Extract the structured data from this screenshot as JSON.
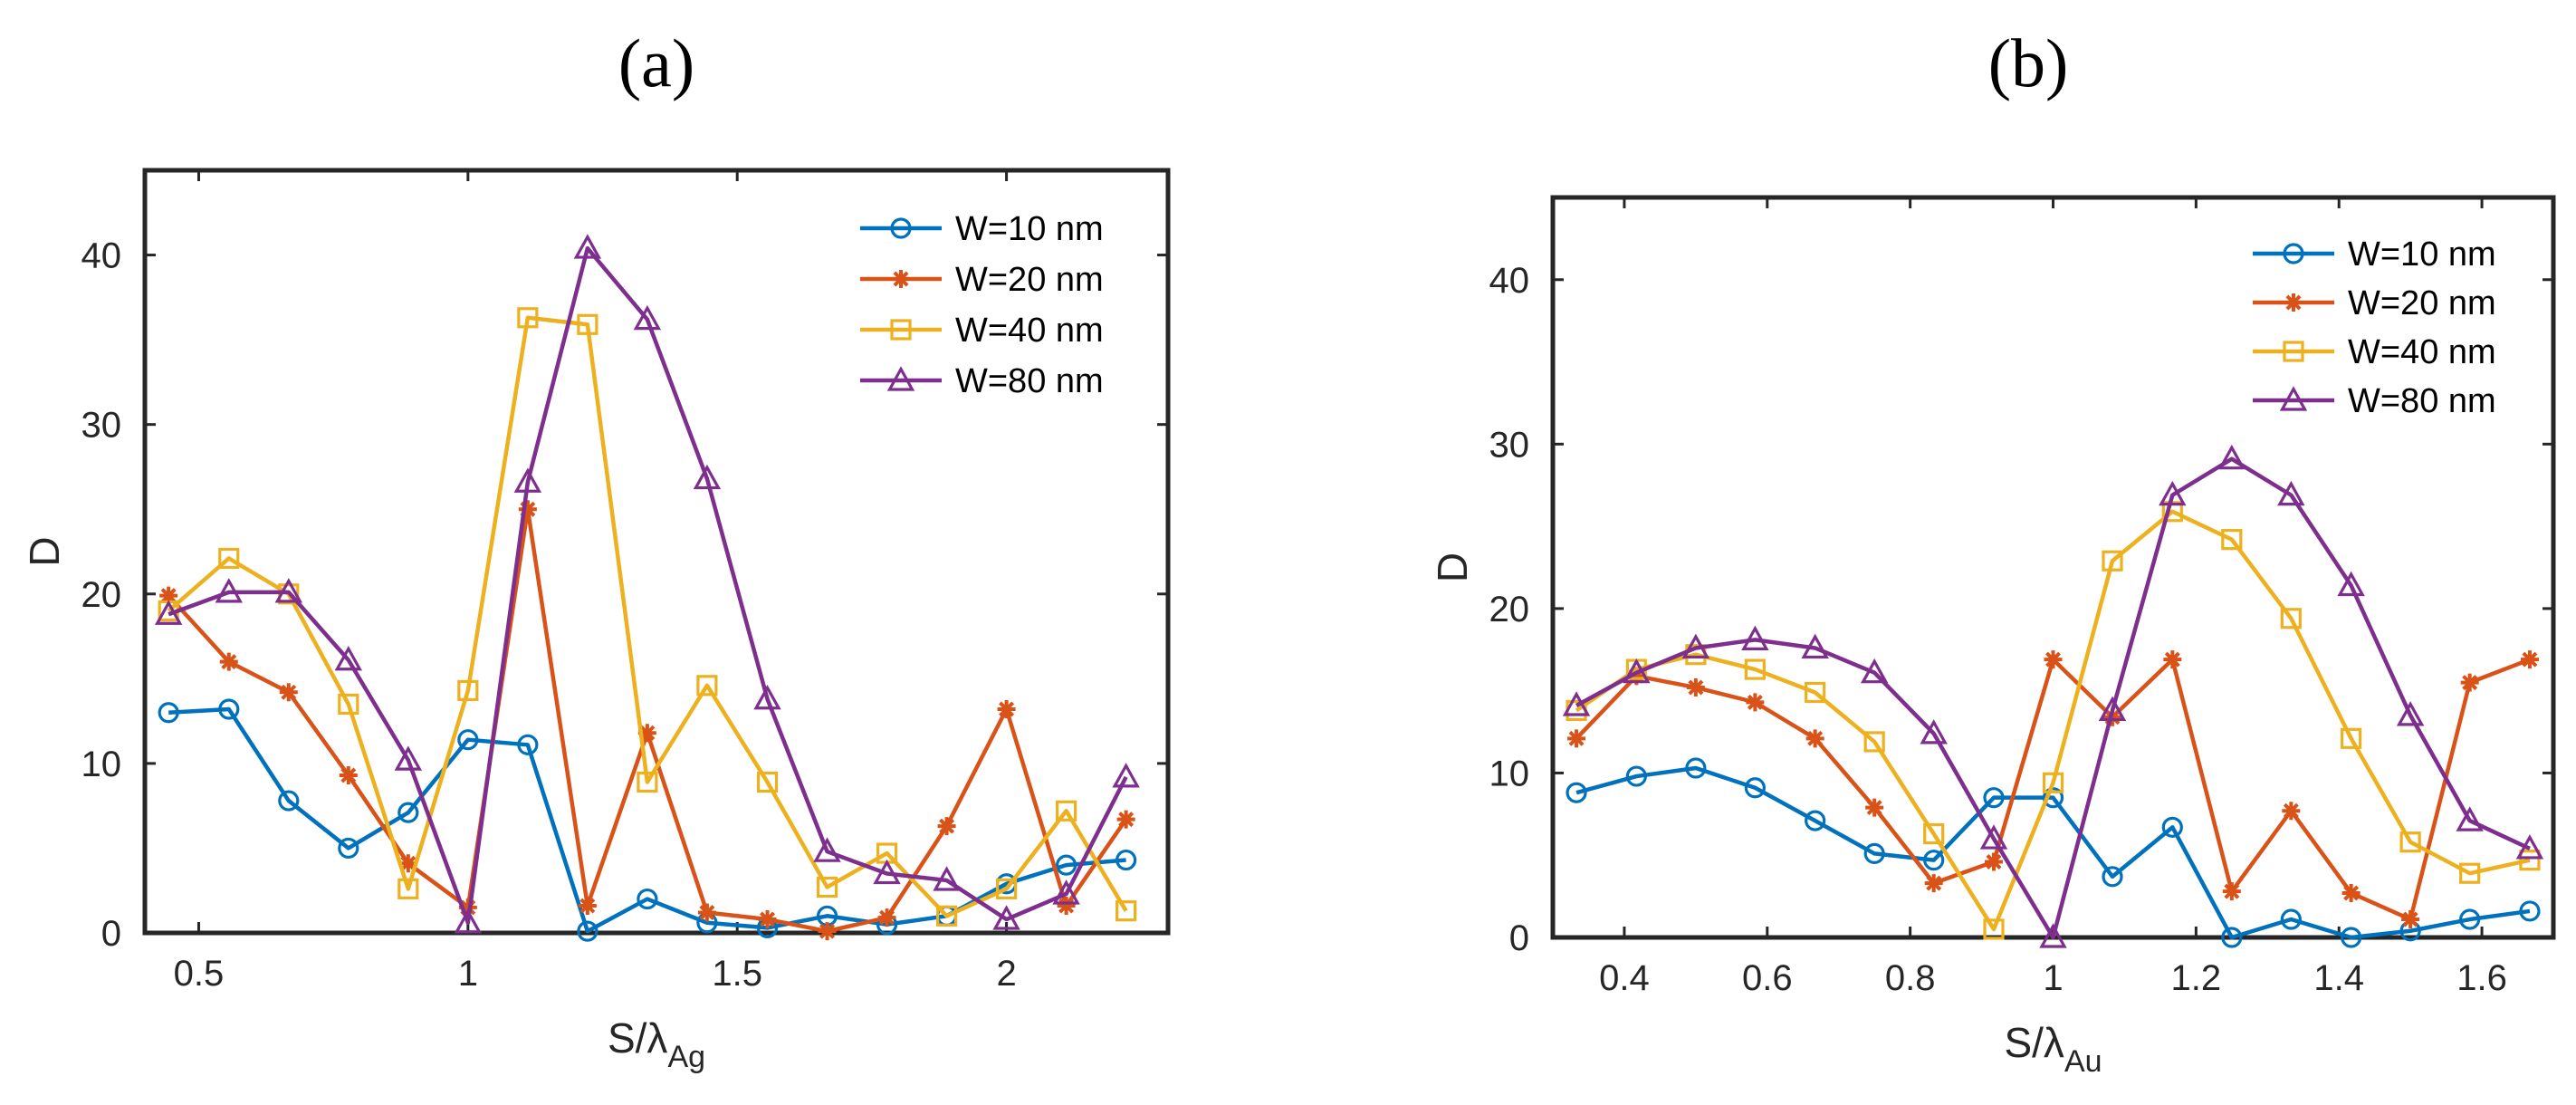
{
  "chart_data": [
    {
      "type": "line",
      "panel_label": "(a)",
      "xlabel": "S/λ",
      "xlabel_sub": "Ag",
      "ylabel": "D",
      "xlim": [
        0.4,
        2.3
      ],
      "ylim": [
        0,
        45
      ],
      "xticks": [
        0.5,
        1,
        1.5,
        2
      ],
      "xtick_labels": [
        "0.5",
        "1",
        "1.5",
        "2"
      ],
      "yticks": [
        0,
        10,
        20,
        30,
        40
      ],
      "ytick_labels": [
        "0",
        "10",
        "20",
        "30",
        "40"
      ],
      "grid": false,
      "legend_position": "top-right",
      "x": [
        0.444,
        0.556,
        0.667,
        0.778,
        0.889,
        1.0,
        1.111,
        1.222,
        1.333,
        1.444,
        1.556,
        1.667,
        1.778,
        1.889,
        2.0,
        2.111,
        2.222
      ],
      "series": [
        {
          "name": "W=10 nm",
          "marker": "circle",
          "color": "#0072BD",
          "values": [
            13.0,
            13.2,
            7.8,
            5.0,
            7.1,
            11.4,
            11.1,
            0.1,
            2.0,
            0.6,
            0.3,
            1.0,
            0.5,
            1.0,
            2.9,
            4.0,
            4.3
          ]
        },
        {
          "name": "W=20 nm",
          "marker": "star",
          "color": "#D95319",
          "values": [
            19.9,
            16.0,
            14.2,
            9.3,
            4.1,
            1.5,
            25.0,
            1.6,
            11.8,
            1.2,
            0.8,
            0.1,
            0.9,
            6.3,
            13.2,
            1.6,
            6.7
          ]
        },
        {
          "name": "W=40 nm",
          "marker": "square",
          "color": "#EDB120",
          "values": [
            19.0,
            22.1,
            20.0,
            13.5,
            2.6,
            14.3,
            36.3,
            35.9,
            8.9,
            14.6,
            8.9,
            2.7,
            4.7,
            1.0,
            2.6,
            7.2,
            1.3
          ]
        },
        {
          "name": "W=80 nm",
          "marker": "triangle",
          "color": "#7E2F8E",
          "values": [
            18.8,
            20.1,
            20.1,
            16.1,
            10.2,
            0.6,
            26.6,
            40.4,
            36.2,
            26.8,
            13.8,
            4.8,
            3.5,
            3.1,
            0.8,
            2.3,
            9.2
          ]
        }
      ]
    },
    {
      "type": "line",
      "panel_label": "(b)",
      "xlabel": "S/λ",
      "xlabel_sub": "Au",
      "ylabel": "D",
      "xlim": [
        0.3,
        1.7
      ],
      "ylim": [
        0,
        45
      ],
      "xticks": [
        0.4,
        0.6,
        0.8,
        1,
        1.2,
        1.4,
        1.6
      ],
      "xtick_labels": [
        "0.4",
        "0.6",
        "0.8",
        "1",
        "1.2",
        "1.4",
        "1.6"
      ],
      "yticks": [
        0,
        10,
        20,
        30,
        40
      ],
      "ytick_labels": [
        "0",
        "10",
        "20",
        "30",
        "40"
      ],
      "grid": false,
      "legend_position": "top-right",
      "x": [
        0.333,
        0.417,
        0.5,
        0.583,
        0.667,
        0.75,
        0.833,
        0.917,
        1.0,
        1.083,
        1.167,
        1.25,
        1.333,
        1.417,
        1.5,
        1.583,
        1.667
      ],
      "series": [
        {
          "name": "W=10 nm",
          "marker": "circle",
          "color": "#0072BD",
          "values": [
            8.8,
            9.8,
            10.3,
            9.1,
            7.1,
            5.1,
            4.7,
            8.5,
            8.5,
            3.7,
            6.7,
            0.0,
            1.1,
            0.0,
            0.4,
            1.1,
            1.6
          ]
        },
        {
          "name": "W=20 nm",
          "marker": "star",
          "color": "#D95319",
          "values": [
            12.1,
            15.9,
            15.2,
            14.3,
            12.1,
            7.9,
            3.3,
            4.6,
            16.9,
            13.4,
            16.9,
            2.8,
            7.7,
            2.7,
            1.1,
            15.5,
            16.9
          ]
        },
        {
          "name": "W=40 nm",
          "marker": "square",
          "color": "#EDB120",
          "values": [
            13.8,
            16.3,
            17.2,
            16.3,
            14.9,
            11.9,
            6.3,
            0.5,
            9.4,
            22.9,
            25.9,
            24.2,
            19.4,
            12.1,
            5.8,
            3.9,
            4.7
          ]
        },
        {
          "name": "W=80 nm",
          "marker": "triangle",
          "color": "#7E2F8E",
          "values": [
            14.1,
            16.1,
            17.6,
            18.1,
            17.6,
            16.1,
            12.4,
            6.0,
            0.0,
            13.8,
            26.9,
            29.1,
            26.9,
            21.4,
            13.5,
            7.1,
            5.4
          ]
        }
      ]
    }
  ]
}
